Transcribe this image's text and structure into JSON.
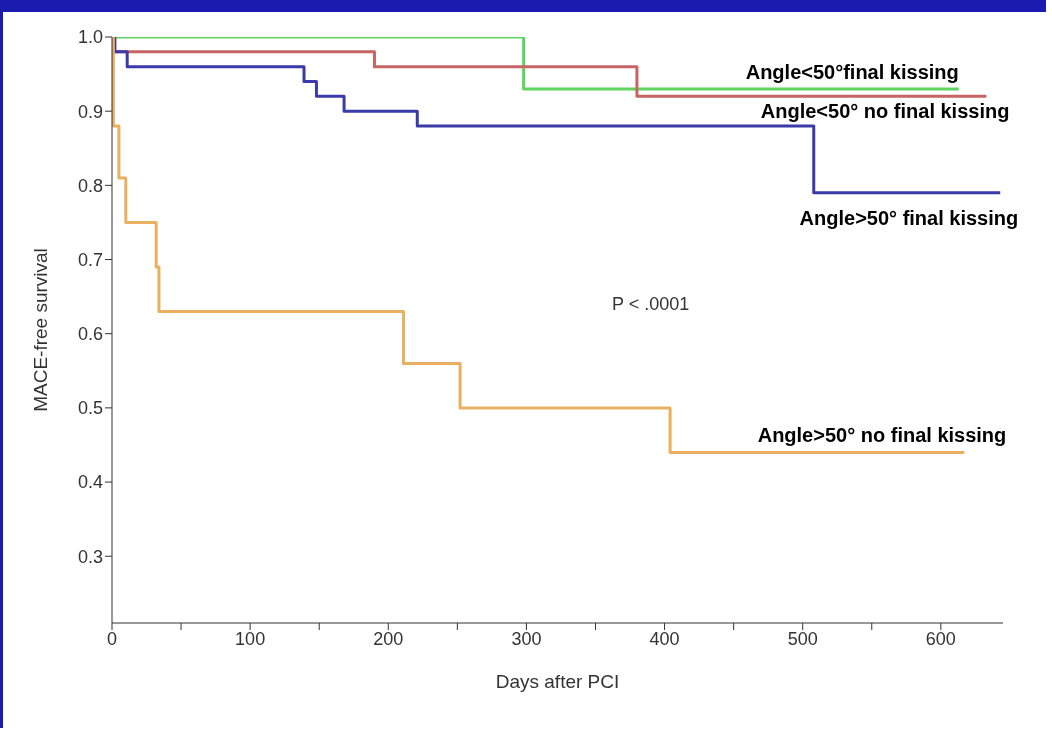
{
  "chart_data": {
    "type": "step",
    "xlabel": "Days after PCI",
    "ylabel": "MACE-free survival",
    "xlim": [
      0,
      645
    ],
    "ylim": [
      0.21,
      1.0
    ],
    "xticks": [
      0,
      {
        "value": 50,
        "label": null
      },
      100,
      {
        "value": 150,
        "label": null
      },
      200,
      {
        "value": 250,
        "label": null
      },
      300,
      {
        "value": 350,
        "label": null
      },
      400,
      {
        "value": 450,
        "label": null
      },
      500,
      {
        "value": 550,
        "label": null
      },
      600
    ],
    "yticks": [
      0.3,
      0.4,
      0.5,
      0.6,
      0.7,
      0.8,
      0.9,
      {
        "value": 1,
        "label": "1.0"
      }
    ],
    "series": [
      {
        "name": "Angle<50°final kissing",
        "color": "#5fd35f",
        "x": [
          0,
          298,
          613
        ],
        "values": [
          1.0,
          0.93,
          0.93
        ]
      },
      {
        "name": "Angle<50° no final kissing",
        "color": "#c86464",
        "x": [
          0,
          2,
          190,
          380,
          633
        ],
        "values": [
          1.0,
          0.98,
          0.96,
          0.92,
          0.92
        ]
      },
      {
        "name": "Angle>50° final kissing",
        "color": "#3a3aa8",
        "x": [
          0,
          2,
          11,
          139,
          148,
          168,
          221,
          508,
          643
        ],
        "values": [
          1.0,
          0.98,
          0.96,
          0.94,
          0.92,
          0.9,
          0.88,
          0.79,
          0.79
        ]
      },
      {
        "name": "Angle>50° no final kissing",
        "color": "#e8b060",
        "x": [
          0,
          1,
          5,
          10,
          32,
          34,
          211,
          252,
          404,
          617
        ],
        "values": [
          1.0,
          0.88,
          0.81,
          0.75,
          0.69,
          0.63,
          0.56,
          0.5,
          0.44,
          0.44
        ]
      }
    ],
    "annotations": [
      "P < .0001"
    ],
    "grid": false,
    "marker": "none",
    "line_style": "solid"
  }
}
